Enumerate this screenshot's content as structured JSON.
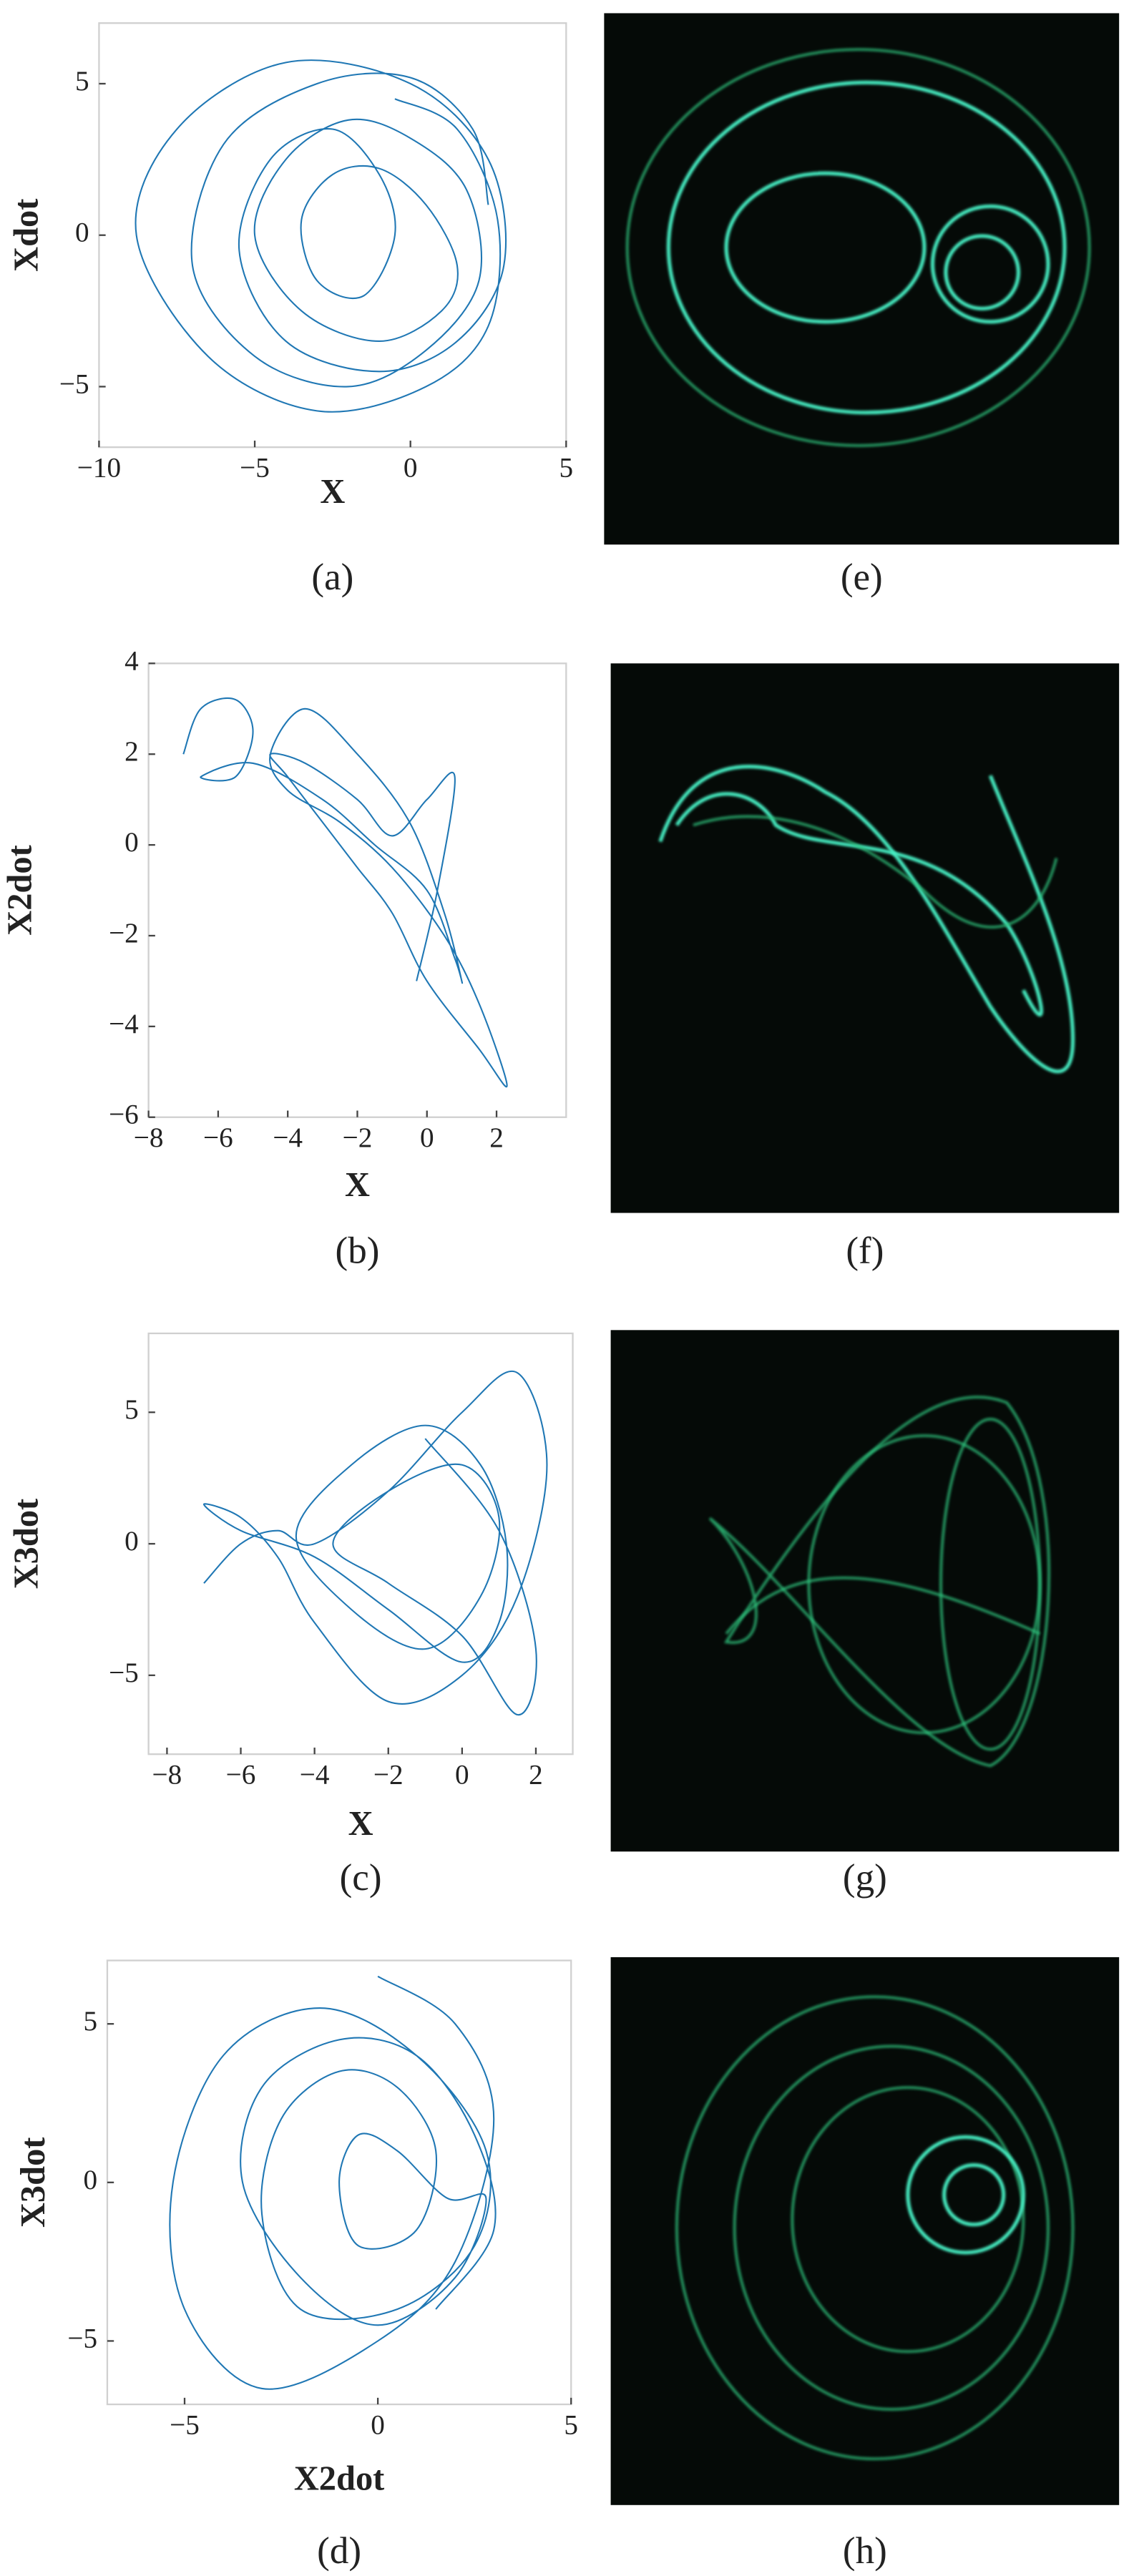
{
  "chart_data": [
    {
      "type": "line",
      "caption": "(a)",
      "x_label": "X",
      "y_label": "Xdot",
      "color": "#1f77b4",
      "xlim": [
        -10,
        5
      ],
      "ylim": [
        -7,
        7
      ],
      "xticks": [
        {
          "value": -10,
          "label": "−10"
        },
        {
          "value": -5,
          "label": "−5"
        },
        0,
        5
      ],
      "yticks": [
        {
          "value": -5,
          "label": "−5"
        },
        0,
        5
      ],
      "x": [
        -0.5,
        1.5,
        2.8,
        2.5,
        0.5,
        -3,
        -6.5,
        -8.8,
        -7.5,
        -4,
        0,
        2.5,
        3,
        1.5,
        -1,
        -4,
        -5.5,
        -4.5,
        -2.5,
        -1,
        -0.5,
        -1.5,
        -3,
        -3.5,
        -2.5,
        -1,
        0.5,
        1.5,
        1,
        -1,
        -3.5,
        -5,
        -4,
        -2,
        0,
        1.8,
        2.2,
        0.5,
        -2,
        -5,
        -7,
        -6,
        -3,
        0,
        2,
        2.5
      ],
      "values": [
        4.5,
        3.5,
        0.5,
        -3,
        -5,
        -5.8,
        -4,
        0,
        3.5,
        5.7,
        5,
        2.5,
        -1,
        -3.5,
        -4.5,
        -3.5,
        -0.5,
        2.5,
        3.5,
        2,
        0,
        -2,
        -1.5,
        0.5,
        2,
        2.2,
        1,
        -1,
        -2.5,
        -3.5,
        -2.5,
        0,
        2.5,
        3.8,
        3.2,
        1.5,
        -1.5,
        -3.8,
        -5,
        -4,
        -1,
        3,
        5,
        5.2,
        3.5,
        1
      ]
    },
    {
      "type": "line",
      "caption": "(b)",
      "x_label": "X",
      "y_label": "X2dot",
      "color": "#1f77b4",
      "xlim": [
        -8,
        4
      ],
      "ylim": [
        -6,
        4
      ],
      "xticks": [
        {
          "value": -8,
          "label": "−8"
        },
        {
          "value": -6,
          "label": "−6"
        },
        {
          "value": -4,
          "label": "−4"
        },
        {
          "value": -2,
          "label": "−2"
        },
        0,
        2
      ],
      "yticks": [
        {
          "value": -6,
          "label": "−6"
        },
        {
          "value": -4,
          "label": "−4"
        },
        {
          "value": -2,
          "label": "−2"
        },
        0,
        2,
        4
      ],
      "x": [
        -7,
        -6.5,
        -5.5,
        -5,
        -5.5,
        -6.5,
        -5,
        -3,
        -1.5,
        0,
        0.8,
        1,
        0.5,
        -0.5,
        -2,
        -3.5,
        -4.5,
        -4,
        -2.5,
        -1,
        0.5,
        1.5,
        2.3,
        1.5,
        0,
        -1,
        -2,
        -3,
        -4,
        -4.5,
        -3.5,
        -2,
        -1,
        0,
        0.8,
        0.3,
        -0.3
      ],
      "values": [
        2,
        3,
        3.2,
        2.5,
        1.5,
        1.5,
        1.8,
        1,
        0,
        -1,
        -2.5,
        -3,
        -1.5,
        0.5,
        2,
        3,
        2,
        1.2,
        0.5,
        -0.5,
        -2,
        -3.5,
        -5.3,
        -4.5,
        -3,
        -1.5,
        -0.5,
        0.5,
        1.5,
        2,
        1.8,
        1,
        0.2,
        1,
        1.5,
        -1,
        -3
      ]
    },
    {
      "type": "line",
      "caption": "(c)",
      "x_label": "X",
      "y_label": "X3dot",
      "color": "#1f77b4",
      "xlim": [
        -8.5,
        3
      ],
      "ylim": [
        -8,
        8
      ],
      "xticks": [
        {
          "value": -8,
          "label": "−8"
        },
        {
          "value": -6,
          "label": "−6"
        },
        {
          "value": -4,
          "label": "−4"
        },
        {
          "value": -2,
          "label": "−2"
        },
        0,
        2
      ],
      "yticks": [
        {
          "value": -5,
          "label": "−5"
        },
        0,
        5
      ],
      "x": [
        -7,
        -6,
        -5,
        -4,
        -2,
        0,
        1.5,
        2.3,
        1.5,
        0,
        -2,
        -4,
        -5,
        -6,
        -7,
        -6,
        -4,
        -2,
        0,
        1,
        1.2,
        0.5,
        -1,
        -3,
        -4.5,
        -3,
        -1,
        0.5,
        1,
        0,
        -2,
        -3.5,
        -2,
        0,
        1.5,
        2,
        1,
        -1
      ],
      "values": [
        -1.5,
        0,
        0.5,
        0,
        2,
        5,
        6.5,
        3,
        -2,
        -5,
        -6,
        -3,
        -0.5,
        1,
        1.5,
        0.5,
        -0.5,
        -2.5,
        -4.5,
        -3,
        0,
        3,
        4.5,
        3,
        0.3,
        -2.5,
        -4,
        -2,
        1,
        3,
        2,
        0,
        -1.5,
        -3.5,
        -6.5,
        -4,
        0.5,
        4
      ]
    },
    {
      "type": "line",
      "caption": "(d)",
      "x_label": "X2dot",
      "y_label": "X3dot",
      "color": "#1f77b4",
      "xlim": [
        -7,
        5
      ],
      "ylim": [
        -7,
        7
      ],
      "xticks": [
        {
          "value": -5,
          "label": "−5"
        },
        0,
        5
      ],
      "yticks": [
        {
          "value": -5,
          "label": "−5"
        },
        0,
        5
      ],
      "x": [
        0,
        2,
        3,
        2,
        0,
        -3,
        -5,
        -5.3,
        -4,
        -1.5,
        1,
        2.8,
        2.5,
        0.5,
        -2,
        -3,
        -2.5,
        -1,
        0.5,
        1.5,
        1,
        -0.5,
        -1,
        -0.5,
        0.5,
        1.8,
        2.8,
        2,
        0,
        -2,
        -3.5,
        -3,
        -1,
        1,
        2.5,
        3,
        1.5
      ],
      "values": [
        6.5,
        5,
        2,
        -2.5,
        -5,
        -6.5,
        -4,
        0,
        4,
        5.5,
        4,
        1,
        -2,
        -4,
        -4,
        -1,
        2,
        3.5,
        3,
        1,
        -1.5,
        -2,
        0,
        1.5,
        1,
        -0.5,
        -0.5,
        -3,
        -4.5,
        -3,
        0,
        3,
        4.5,
        4,
        1.5,
        -1.5,
        -4
      ]
    }
  ],
  "photo_captions": [
    "(e)",
    "(f)",
    "(g)",
    "(h)"
  ]
}
